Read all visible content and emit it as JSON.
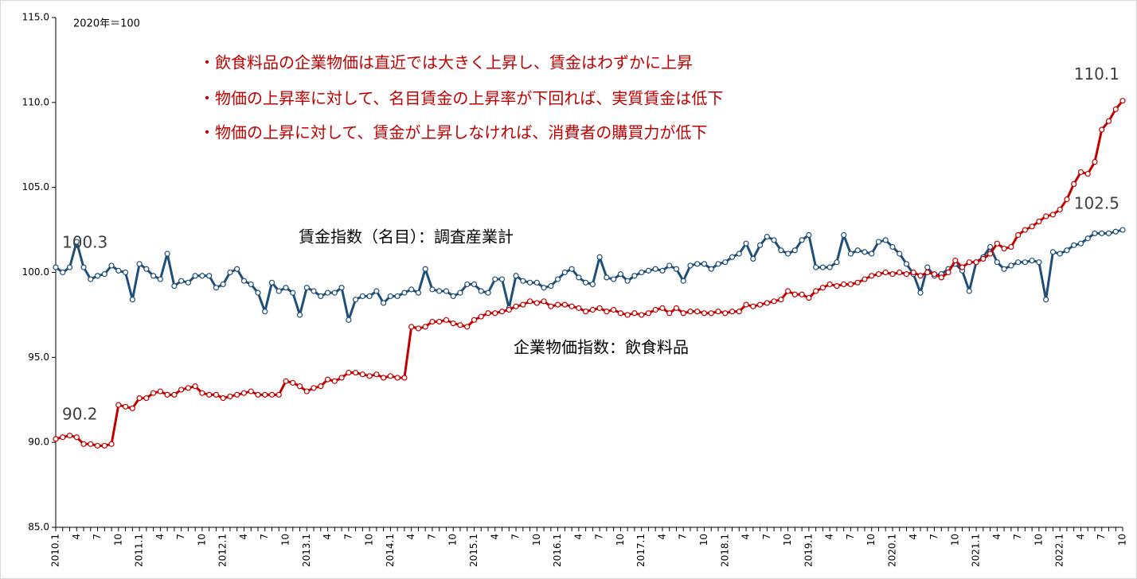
{
  "chart_data": {
    "type": "line",
    "note": "2020年＝100",
    "annotations": [
      "・飲食料品の企業物価は直近では大きく上昇し、賃金はわずかに上昇",
      "・物価の上昇率に対して、名目賃金の上昇率が下回れば、実質賃金は低下",
      "・物価の上昇に対して、賃金が上昇しなければ、消費者の購買力が低下"
    ],
    "categories": [
      "2010.1",
      null,
      null,
      "4",
      null,
      null,
      "7",
      null,
      null,
      "10",
      null,
      null,
      "2011.1",
      null,
      null,
      "4",
      null,
      null,
      "7",
      null,
      null,
      "10",
      null,
      null,
      "2012.1",
      null,
      null,
      "4",
      null,
      null,
      "7",
      null,
      null,
      "10",
      null,
      null,
      "2013.1",
      null,
      null,
      "4",
      null,
      null,
      "7",
      null,
      null,
      "10",
      null,
      null,
      "2014.1",
      null,
      null,
      "4",
      null,
      null,
      "7",
      null,
      null,
      "10",
      null,
      null,
      "2015.1",
      null,
      null,
      "4",
      null,
      null,
      "7",
      null,
      null,
      "10",
      null,
      null,
      "2016.1",
      null,
      null,
      "4",
      null,
      null,
      "7",
      null,
      null,
      "10",
      null,
      null,
      "2017.1",
      null,
      null,
      "4",
      null,
      null,
      "7",
      null,
      null,
      "10",
      null,
      null,
      "2018.1",
      null,
      null,
      "4",
      null,
      null,
      "7",
      null,
      null,
      "10",
      null,
      null,
      "2019.1",
      null,
      null,
      "4",
      null,
      null,
      "7",
      null,
      null,
      "10",
      null,
      null,
      "2020.1",
      null,
      null,
      "4",
      null,
      null,
      "7",
      null,
      null,
      "10",
      null,
      null,
      "2021.1",
      null,
      null,
      "4",
      null,
      null,
      "7",
      null,
      null,
      "10",
      null,
      null,
      "2022.1",
      null,
      null,
      "4",
      null,
      null,
      "7",
      null,
      null,
      "10"
    ],
    "series": [
      {
        "name": "賃金指数（名目）：調査産業計",
        "color": "#1f4e79",
        "values": [
          100.3,
          100.0,
          100.3,
          101.8,
          100.3,
          99.6,
          99.8,
          99.9,
          100.4,
          100.1,
          100.0,
          98.4,
          100.5,
          100.2,
          99.8,
          99.6,
          101.1,
          99.2,
          99.5,
          99.4,
          99.8,
          99.8,
          99.8,
          99.1,
          99.3,
          100.0,
          100.2,
          99.5,
          99.3,
          98.8,
          97.7,
          99.4,
          98.9,
          99.1,
          98.8,
          97.5,
          99.1,
          98.9,
          98.6,
          98.8,
          98.8,
          99.1,
          97.2,
          98.4,
          98.6,
          98.6,
          98.9,
          98.2,
          98.6,
          98.6,
          98.8,
          99.0,
          98.8,
          100.2,
          99.0,
          98.9,
          98.9,
          98.6,
          98.8,
          99.3,
          99.3,
          98.9,
          98.8,
          99.6,
          99.6,
          97.9,
          99.8,
          99.5,
          99.4,
          99.4,
          99.1,
          99.2,
          99.6,
          100.0,
          100.2,
          99.7,
          99.4,
          99.3,
          100.9,
          99.7,
          99.6,
          99.9,
          99.5,
          99.8,
          100.0,
          100.1,
          100.2,
          100.1,
          100.4,
          100.2,
          99.5,
          100.4,
          100.5,
          100.5,
          100.2,
          100.5,
          100.6,
          100.9,
          101.1,
          101.7,
          100.8,
          101.6,
          102.1,
          101.9,
          101.3,
          101.1,
          101.3,
          101.9,
          102.2,
          100.3,
          100.3,
          100.3,
          100.6,
          102.2,
          101.1,
          101.3,
          101.2,
          101.1,
          101.8,
          101.9,
          101.5,
          101.1,
          100.5,
          99.9,
          98.8,
          100.3,
          99.8,
          99.9,
          100.2,
          100.5,
          100.1,
          98.9,
          100.6,
          100.9,
          101.5,
          100.6,
          100.2,
          100.4,
          100.6,
          100.6,
          100.7,
          100.6,
          98.4,
          101.2,
          101.1,
          101.3,
          101.6,
          101.7,
          102.0,
          102.3,
          102.3,
          102.3,
          102.4,
          102.5
        ]
      },
      {
        "name": "企業物価指数：飲食料品",
        "color": "#c00000",
        "values": [
          90.2,
          90.3,
          90.4,
          90.3,
          89.9,
          89.9,
          89.8,
          89.8,
          89.9,
          92.2,
          92.1,
          92.0,
          92.6,
          92.6,
          92.9,
          93.0,
          92.8,
          92.8,
          93.1,
          93.2,
          93.3,
          92.9,
          92.8,
          92.8,
          92.6,
          92.7,
          92.8,
          92.9,
          93.0,
          92.8,
          92.8,
          92.8,
          92.8,
          93.6,
          93.5,
          93.3,
          93.0,
          93.2,
          93.3,
          93.7,
          93.6,
          93.8,
          94.1,
          94.1,
          94.0,
          93.9,
          94.0,
          93.8,
          93.9,
          93.8,
          93.8,
          96.8,
          96.7,
          96.8,
          97.1,
          97.1,
          97.2,
          97.0,
          96.9,
          96.8,
          97.2,
          97.4,
          97.6,
          97.6,
          97.7,
          97.8,
          98.0,
          98.1,
          98.3,
          98.2,
          98.3,
          98.0,
          98.1,
          98.1,
          98.0,
          97.9,
          97.7,
          97.8,
          97.9,
          97.7,
          97.8,
          97.6,
          97.5,
          97.6,
          97.5,
          97.6,
          97.8,
          97.9,
          97.6,
          97.9,
          97.6,
          97.7,
          97.7,
          97.6,
          97.6,
          97.7,
          97.6,
          97.7,
          97.7,
          98.1,
          98.0,
          98.1,
          98.2,
          98.3,
          98.4,
          98.9,
          98.7,
          98.7,
          98.5,
          98.9,
          99.1,
          99.3,
          99.2,
          99.3,
          99.3,
          99.4,
          99.6,
          99.8,
          99.9,
          100.0,
          99.9,
          100.0,
          99.9,
          100.0,
          99.8,
          100.0,
          99.9,
          99.7,
          100.0,
          100.7,
          100.3,
          100.6,
          100.6,
          100.8,
          101.1,
          101.7,
          101.4,
          101.5,
          102.2,
          102.5,
          102.7,
          103.0,
          103.3,
          103.4,
          103.7,
          104.3,
          105.2,
          105.9,
          105.8,
          106.5,
          108.4,
          108.9,
          109.6,
          110.1
        ]
      }
    ],
    "ylim": [
      85,
      115
    ],
    "yticks": [
      {
        "value": 85,
        "label": "85.0"
      },
      {
        "value": 90,
        "label": "90.0"
      },
      {
        "value": 95,
        "label": "95.0"
      },
      {
        "value": 100,
        "label": "100.0"
      },
      {
        "value": 105,
        "label": "105.0"
      },
      {
        "value": 110,
        "label": "110.0"
      },
      {
        "value": 115,
        "label": "115.0"
      }
    ]
  }
}
